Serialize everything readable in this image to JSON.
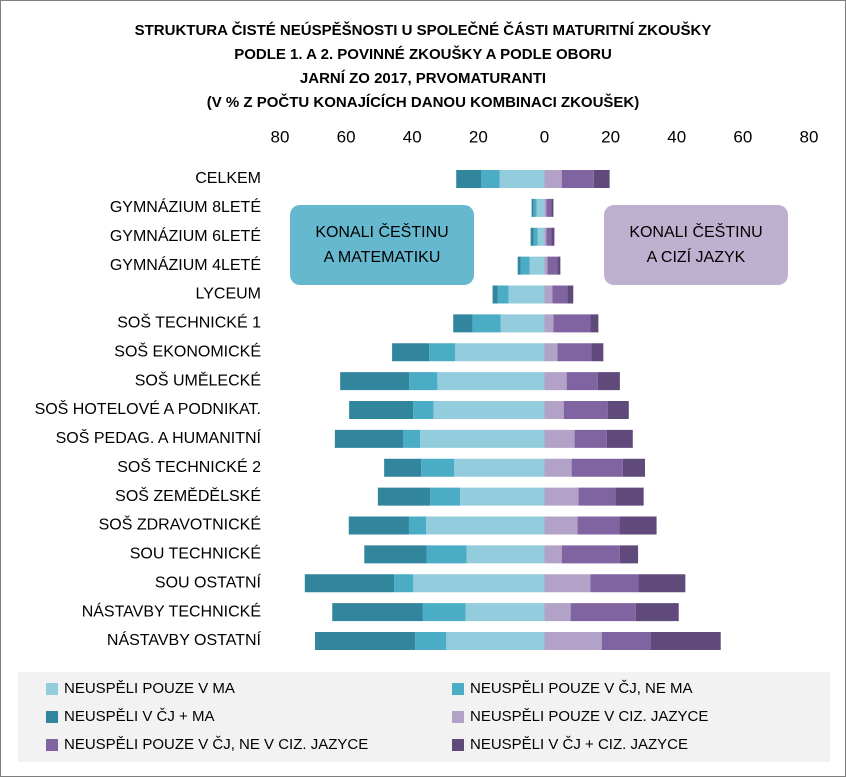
{
  "chart_data": {
    "type": "diverging-bar",
    "title": [
      "STRUKTURA ČISTÉ NEÚSPĚŠNOSTI U SPOLEČNÉ ČÁSTI MATURITNÍ ZKOUŠKY",
      "PODLE 1. A 2. POVINNÉ ZKOUŠKY A PODLE OBORU",
      "JARNÍ ZO 2017, PRVOMATURANTI",
      "(V % Z POČTU KONAJÍCÍCH DANOU KOMBINACI ZKOUŠEK)"
    ],
    "annotations": [
      {
        "lines": [
          "KONALI ČEŠTINU",
          "A MATEMATIKU"
        ],
        "color": "#4bacc6"
      },
      {
        "lines": [
          "KONALI ČEŠTINU",
          "A CIZÍ JAZYK"
        ],
        "color": "#b3a2c7"
      }
    ],
    "categories": [
      "CELKEM",
      "GYMNÁZIUM 8LETÉ",
      "GYMNÁZIUM 6LETÉ",
      "GYMNÁZIUM 4LETÉ",
      "LYCEUM",
      "SOŠ TECHNICKÉ 1",
      "SOŠ EKONOMICKÉ",
      "SOŠ UMĚLECKÉ",
      "SOŠ HOTELOVÉ A PODNIKAT.",
      "SOŠ PEDAG. A HUMANITNÍ",
      "SOŠ TECHNICKÉ 2",
      "SOŠ ZEMĚDĚLSKÉ",
      "SOŠ ZDRAVOTNICKÉ",
      "SOU TECHNICKÉ",
      "SOU OSTATNÍ",
      "NÁSTAVBY TECHNICKÉ",
      "NÁSTAVBY OSTATNÍ"
    ],
    "series": [
      {
        "name": "NEUSPĚLI POUZE V MA",
        "color": "#93cddd",
        "values": [
          -13.6,
          -2.4,
          -2.1,
          -4.5,
          -10.9,
          -13.3,
          -27.0,
          -32.4,
          -33.6,
          -37.6,
          -27.3,
          -25.5,
          -35.8,
          -23.6,
          -39.7,
          -23.9,
          -29.7
        ]
      },
      {
        "name": "NEUSPĚLI POUZE V ČJ, NE MA",
        "color": "#4bacc6",
        "values": [
          -5.5,
          -0.9,
          -1.2,
          -2.7,
          -3.3,
          -8.5,
          -7.9,
          -8.5,
          -6.1,
          -5.2,
          -10.0,
          -9.1,
          -5.2,
          -12.1,
          -5.8,
          -13.0,
          -9.4
        ]
      },
      {
        "name": "NEUSPĚLI V ČJ + MA",
        "color": "#31859c",
        "values": [
          -7.6,
          -0.6,
          -0.9,
          -0.9,
          -1.5,
          -5.8,
          -11.2,
          -20.9,
          -19.4,
          -20.6,
          -11.2,
          -15.8,
          -18.2,
          -18.8,
          -27.0,
          -27.3,
          -30.3
        ]
      },
      {
        "name": "NEUSPĚLI POUZE V CIZ. JAZYCE",
        "color": "#b3a2c7",
        "values": [
          5.2,
          0.6,
          0.6,
          0.9,
          2.4,
          2.7,
          3.9,
          6.7,
          5.8,
          9.1,
          8.2,
          10.3,
          10.0,
          5.2,
          13.9,
          7.9,
          17.3
        ]
      },
      {
        "name": "NEUSPĚLI POUZE V ČJ, NE V CIZ. JAZYCE",
        "color": "#8064a2",
        "values": [
          9.7,
          1.5,
          1.5,
          3.0,
          4.5,
          11.2,
          10.3,
          9.4,
          13.3,
          9.7,
          15.5,
          11.2,
          12.7,
          17.6,
          14.5,
          19.7,
          14.8
        ]
      },
      {
        "name": "NEUSPĚLI V ČJ + CIZ. JAZYCE",
        "color": "#604a7b",
        "values": [
          4.8,
          0.6,
          0.9,
          0.9,
          1.8,
          2.4,
          3.6,
          6.7,
          6.4,
          7.9,
          6.7,
          8.5,
          11.2,
          5.5,
          14.2,
          13.0,
          21.2
        ]
      }
    ],
    "xlim": [
      -80,
      80
    ],
    "xticks": [
      {
        "value": -80,
        "label": "80"
      },
      {
        "value": -60,
        "label": "60"
      },
      {
        "value": -40,
        "label": "40"
      },
      {
        "value": -20,
        "label": "20"
      },
      0,
      20,
      40,
      60,
      80
    ]
  }
}
